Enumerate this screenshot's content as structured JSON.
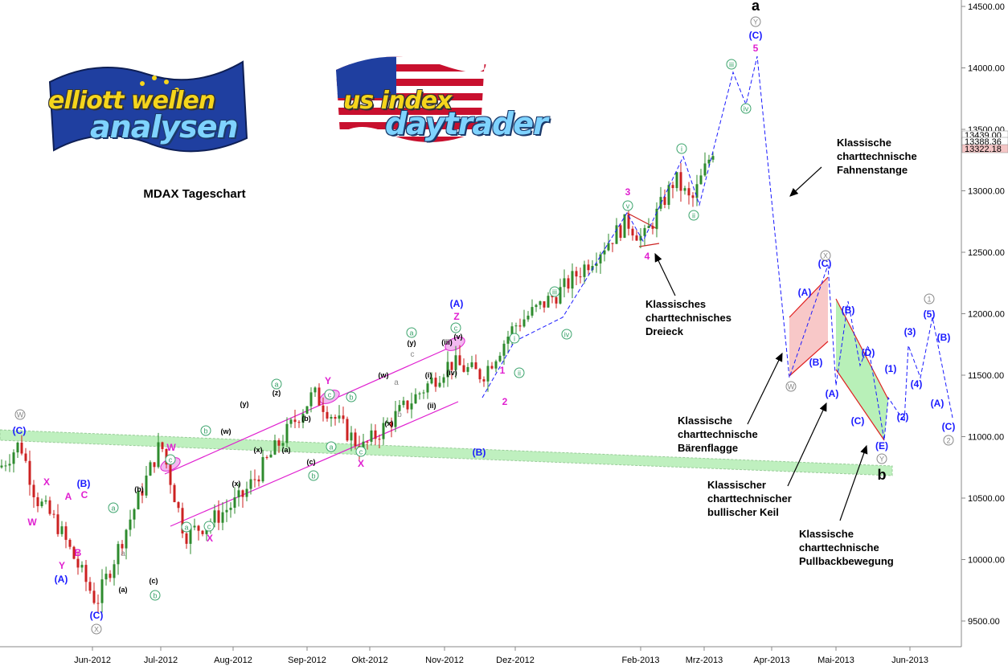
{
  "chart_data": {
    "type": "candlestick",
    "title": "MDAX Tageschart",
    "ylim": [
      9300,
      14600
    ],
    "y_ticks": [
      "14500.00",
      "14000.00",
      "13500.00",
      "13000.00",
      "12500.00",
      "12000.00",
      "11500.00",
      "11000.00",
      "10500.00",
      "10000.00",
      "9500.00"
    ],
    "y_tick_values": [
      14500,
      14000,
      13500,
      13000,
      12500,
      12000,
      11500,
      11000,
      10500,
      10000,
      9500
    ],
    "price_tags": [
      "13439.00",
      "13388.36",
      "13322.18"
    ],
    "x_labels": [
      "Jun-2012",
      "Jul-2012",
      "Aug-2012",
      "Sep-2012",
      "Okt-2012",
      "Nov-2012",
      "Dez-2012",
      "Feb-2013",
      "Mrz-2013",
      "Apr-2013",
      "Mai-2013",
      "Jun-2013"
    ],
    "key_prices": [
      10750,
      10950,
      10500,
      10300,
      9650,
      10950,
      10200,
      10300,
      10500,
      11350,
      10900,
      11600,
      11500,
      11900,
      12200,
      12750,
      12600,
      13100,
      12900,
      13388
    ],
    "annotations": [
      "a",
      "b",
      "Klassische charttechnische Fahnenstange",
      "Klassisches charttechnisches Dreieck",
      "Klassische charttechnische Bärenflagge",
      "Klassischer charttechnischer bullischer Keil",
      "Klassische charttechnische Pullbackbewegung"
    ],
    "wave_labels": [
      "W",
      "X",
      "Y",
      "(A)",
      "(B)",
      "(C)",
      "A",
      "B",
      "C",
      "(a)",
      "(b)",
      "(c)",
      "(w)",
      "(x)",
      "(y)",
      "(z)",
      "(i)",
      "(ii)",
      "(iii)",
      "(iv)",
      "(v)",
      "Z",
      "1",
      "2",
      "3",
      "4",
      "5",
      "(D)",
      "(E)",
      "(1)",
      "(2)",
      "(3)",
      "(4)",
      "(5)",
      "a",
      "b",
      "c",
      "i",
      "ii",
      "iii",
      "iv",
      "v"
    ]
  },
  "logos": {
    "elliott_line1": "elliott wellen",
    "elliott_line2": "analysen",
    "usindex_line1": "us index",
    "usindex_line2": "daytrader"
  },
  "colors": {
    "up": "#2e8b2e",
    "down": "#cc2222",
    "wave_blue": "#1a1aff",
    "wave_magenta": "#e020d0",
    "wave_green": "#3aa36b",
    "channel": "#e020d0",
    "support_band": "#bff0bf"
  }
}
